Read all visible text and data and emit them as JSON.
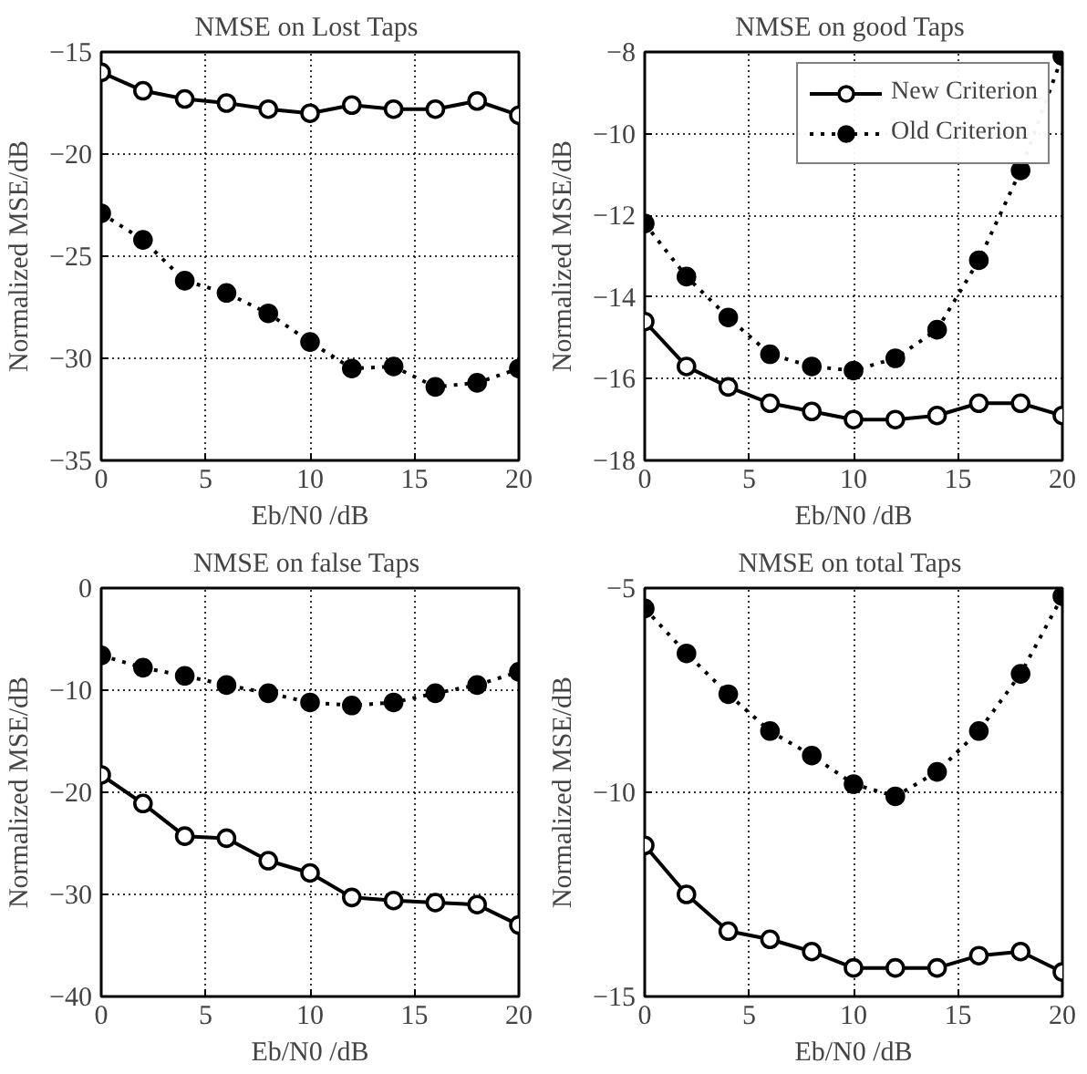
{
  "chart_data": [
    {
      "type": "line",
      "title": "NMSE on  Lost Taps",
      "xlabel": "Eb/N0 /dB",
      "ylabel": "Normalized MSE/dB",
      "x": [
        0,
        2,
        4,
        6,
        8,
        10,
        12,
        14,
        16,
        18,
        20
      ],
      "xlim": [
        0,
        20
      ],
      "xticks": [
        0,
        5,
        10,
        15,
        20
      ],
      "ylim": [
        -35,
        -15
      ],
      "yticks": [
        -35,
        -30,
        -25,
        -20,
        -15
      ],
      "grid": true,
      "legend": false,
      "marker": "circle",
      "series": [
        {
          "color": "#000000",
          "line_style": "solid",
          "values": [
            -16.0,
            -16.9,
            -17.3,
            -17.5,
            -17.8,
            -18.0,
            -17.6,
            -17.8,
            -17.8,
            -17.4,
            -18.1
          ]
        },
        {
          "color": "#000000",
          "line_style": "dotted",
          "values": [
            -22.9,
            -24.2,
            -26.2,
            -26.8,
            -27.8,
            -29.2,
            -30.5,
            -30.4,
            -31.4,
            -31.2,
            -30.5
          ]
        }
      ]
    },
    {
      "type": "line",
      "title": "NMSE on  good Taps",
      "xlabel": "Eb/N0 /dB",
      "ylabel": "Normalized MSE/dB",
      "x": [
        0,
        2,
        4,
        6,
        8,
        10,
        12,
        14,
        16,
        18,
        20
      ],
      "xlim": [
        0,
        20
      ],
      "xticks": [
        0,
        5,
        10,
        15,
        20
      ],
      "ylim": [
        -18,
        -8
      ],
      "yticks": [
        -18,
        -16,
        -14,
        -12,
        -10,
        -8
      ],
      "grid": true,
      "legend": "top right",
      "marker": "circle",
      "series": [
        {
          "name": "New Criterion",
          "color": "#000000",
          "line_style": "solid",
          "values": [
            -14.6,
            -15.7,
            -16.2,
            -16.6,
            -16.8,
            -17.0,
            -17.0,
            -16.9,
            -16.6,
            -16.6,
            -16.9
          ]
        },
        {
          "name": "Old Criterion",
          "color": "#000000",
          "line_style": "dotted",
          "values": [
            -12.2,
            -13.5,
            -14.5,
            -15.4,
            -15.7,
            -15.8,
            -15.5,
            -14.8,
            -13.1,
            -10.9,
            -8.1
          ]
        }
      ]
    },
    {
      "type": "line",
      "title": "NMSE on  false Taps",
      "xlabel": "Eb/N0 /dB",
      "ylabel": "Normalized MSE/dB",
      "x": [
        0,
        2,
        4,
        6,
        8,
        10,
        12,
        14,
        16,
        18,
        20
      ],
      "xlim": [
        0,
        20
      ],
      "xticks": [
        0,
        5,
        10,
        15,
        20
      ],
      "ylim": [
        -40,
        0
      ],
      "yticks": [
        -40,
        -30,
        -20,
        -10,
        0
      ],
      "grid": true,
      "legend": false,
      "marker": "circle",
      "series": [
        {
          "color": "#000000",
          "line_style": "solid",
          "values": [
            -18.3,
            -21.1,
            -24.3,
            -24.5,
            -26.7,
            -27.9,
            -30.3,
            -30.6,
            -30.8,
            -31.0,
            -33.0
          ]
        },
        {
          "color": "#000000",
          "line_style": "dotted",
          "values": [
            -6.6,
            -7.8,
            -8.6,
            -9.5,
            -10.3,
            -11.2,
            -11.5,
            -11.2,
            -10.3,
            -9.5,
            -8.2
          ]
        }
      ]
    },
    {
      "type": "line",
      "title": "NMSE on  total Taps",
      "xlabel": "Eb/N0 /dB",
      "ylabel": "Normalized MSE/dB",
      "x": [
        0,
        2,
        4,
        6,
        8,
        10,
        12,
        14,
        16,
        18,
        20
      ],
      "xlim": [
        0,
        20
      ],
      "xticks": [
        0,
        5,
        10,
        15,
        20
      ],
      "ylim": [
        -15,
        -5
      ],
      "yticks": [
        -15,
        -10,
        -5
      ],
      "grid": true,
      "legend": false,
      "marker": "circle",
      "series": [
        {
          "color": "#000000",
          "line_style": "solid",
          "values": [
            -11.3,
            -12.5,
            -13.4,
            -13.6,
            -13.9,
            -14.3,
            -14.3,
            -14.3,
            -14.0,
            -13.9,
            -14.4
          ]
        },
        {
          "color": "#000000",
          "line_style": "dotted",
          "values": [
            -5.5,
            -6.6,
            -7.6,
            -8.5,
            -9.1,
            -9.8,
            -10.1,
            -9.5,
            -8.5,
            -7.1,
            -5.2
          ]
        }
      ]
    }
  ]
}
